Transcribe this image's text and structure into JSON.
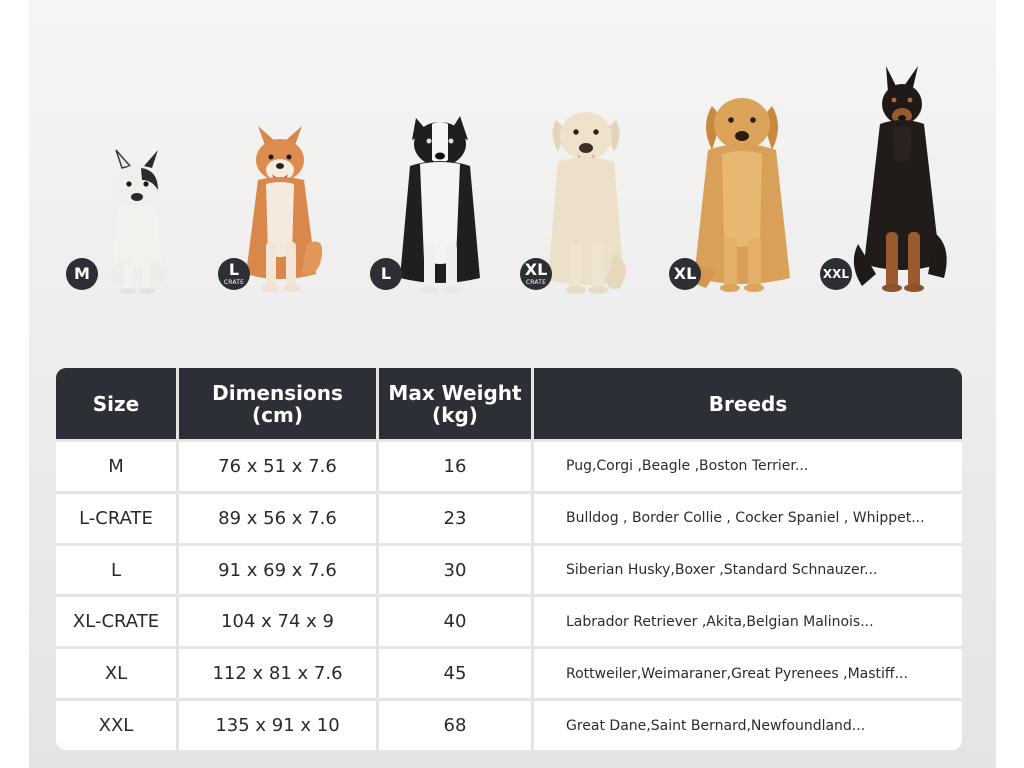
{
  "sizes": [
    {
      "badge": "M",
      "sub": ""
    },
    {
      "badge": "L",
      "sub": "CRATE"
    },
    {
      "badge": "L",
      "sub": ""
    },
    {
      "badge": "XL",
      "sub": "CRATE"
    },
    {
      "badge": "XL",
      "sub": ""
    },
    {
      "badge": "XXL",
      "sub": ""
    }
  ],
  "table": {
    "headers": [
      "Size",
      "Dimensions\n(cm)",
      "Max Weight\n(kg)",
      "Breeds"
    ],
    "rows": [
      {
        "size": "M",
        "dimensions": "76 x 51 x 7.6",
        "weight": "16",
        "breeds": "Pug,Corgi ,Beagle ,Boston Terrier..."
      },
      {
        "size": "L-CRATE",
        "dimensions": "89 x 56 x 7.6",
        "weight": "23",
        "breeds": "Bulldog , Border Collie , Cocker Spaniel , Whippet..."
      },
      {
        "size": "L",
        "dimensions": "91 x 69 x 7.6",
        "weight": "30",
        "breeds": "Siberian Husky,Boxer ,Standard Schnauzer..."
      },
      {
        "size": "XL-CRATE",
        "dimensions": "104 x 74 x 9",
        "weight": "40",
        "breeds": "Labrador Retriever ,Akita,Belgian Malinois..."
      },
      {
        "size": "XL",
        "dimensions": "112 x 81 x 7.6",
        "weight": "45",
        "breeds": "Rottweiler,Weimaraner,Great Pyrenees ,Mastiff..."
      },
      {
        "size": "XXL",
        "dimensions": "135 x 91 x 10",
        "weight": "68",
        "breeds": "Great Dane,Saint Bernard,Newfoundland..."
      }
    ]
  },
  "colors": {
    "header_bg": "#2d2f37",
    "badge_bg": "#2d2f36",
    "grid_line": "#e6e5e5"
  }
}
